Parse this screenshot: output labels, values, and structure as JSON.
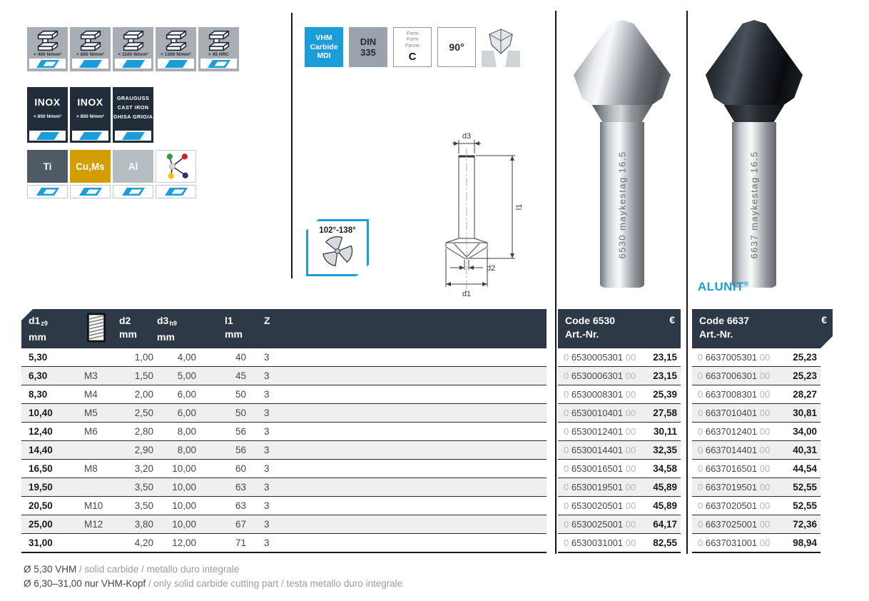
{
  "colors": {
    "accent_blue": "#1b9dd9",
    "header_navy": "#2e3947",
    "badge_gray": "#a9aeb4",
    "inox_navy": "#212c3a",
    "ti_slate": "#4e5a66",
    "cu_gold": "#d59e00",
    "al_gray": "#b5bcc2",
    "row_alt": "#efefef"
  },
  "materials": {
    "row1": [
      {
        "label": "< 400 N/mm²",
        "fill": "partial"
      },
      {
        "label": "< 850 N/mm²",
        "fill": "full"
      },
      {
        "label": "< 1100 N/mm²",
        "fill": "full"
      },
      {
        "label": "< 1300 N/mm²",
        "fill": "full"
      },
      {
        "label": "> 45 HRC",
        "fill": "partial"
      }
    ],
    "row2": [
      {
        "title": "INOX",
        "label": "< 850 N/mm²",
        "fill": "full"
      },
      {
        "title": "INOX",
        "label": "> 850 N/mm²",
        "fill": "full"
      },
      {
        "lines": [
          "GRAUGUSS",
          "CAST IRON",
          "GHISA GRIGIA"
        ],
        "fill": "full"
      }
    ],
    "row3": [
      {
        "title": "Ti",
        "bg": "#4e5a66",
        "fill": "partial"
      },
      {
        "title": "Cu,Ms",
        "bg": "#d59e00",
        "fill": "partial"
      },
      {
        "title": "Al",
        "bg": "#b5bcc2",
        "fill": "partial"
      },
      {
        "icon": "molecule-icon",
        "fill": "partial"
      }
    ]
  },
  "spec_badges": {
    "vhm": {
      "lines": [
        "VHM",
        "Carbide",
        "MDI"
      ]
    },
    "din": {
      "lines": [
        "DIN",
        "335"
      ]
    },
    "form": {
      "labels": [
        "Form",
        "Form",
        "Forme"
      ],
      "letter": "C"
    },
    "angle": "90°"
  },
  "angle_badge": {
    "label": "102°-138°"
  },
  "diagram": {
    "d3": "d3",
    "l1": "l1",
    "d2": "d2",
    "d1": "d1"
  },
  "products": [
    {
      "engraving": "6530 maykestag 16.5",
      "coating": "bright"
    },
    {
      "engraving": "6637 maykestag 16.5",
      "coating": "black",
      "brand_name": "ALUNIT",
      "brand_reg": "®"
    }
  ],
  "table": {
    "headers": {
      "d1": "d1",
      "d1_sub": "z9",
      "mm": "mm",
      "d2": "d2",
      "d3": "d3",
      "d3_sub": "h9",
      "l1": "l1",
      "z": "Z",
      "code1": "Code 6530",
      "code2": "Code 6637",
      "artnr": "Art.-Nr.",
      "euro": "€"
    },
    "code_prefix": "0",
    "code_suffix": "00",
    "rows": [
      {
        "d1": "5,30",
        "m": "",
        "d2": "1,00",
        "d3": "4,00",
        "l1": "40",
        "z": "3",
        "c1": "6530005301",
        "p1": "23,15",
        "c2": "6637005301",
        "p2": "25,23"
      },
      {
        "d1": "6,30",
        "m": "M3",
        "d2": "1,50",
        "d3": "5,00",
        "l1": "45",
        "z": "3",
        "c1": "6530006301",
        "p1": "23,15",
        "c2": "6637006301",
        "p2": "25,23"
      },
      {
        "d1": "8,30",
        "m": "M4",
        "d2": "2,00",
        "d3": "6,00",
        "l1": "50",
        "z": "3",
        "c1": "6530008301",
        "p1": "25,39",
        "c2": "6637008301",
        "p2": "28,27"
      },
      {
        "d1": "10,40",
        "m": "M5",
        "d2": "2,50",
        "d3": "6,00",
        "l1": "50",
        "z": "3",
        "c1": "6530010401",
        "p1": "27,58",
        "c2": "6637010401",
        "p2": "30,81"
      },
      {
        "d1": "12,40",
        "m": "M6",
        "d2": "2,80",
        "d3": "8,00",
        "l1": "56",
        "z": "3",
        "c1": "6530012401",
        "p1": "30,11",
        "c2": "6637012401",
        "p2": "34,00"
      },
      {
        "d1": "14,40",
        "m": "",
        "d2": "2,90",
        "d3": "8,00",
        "l1": "56",
        "z": "3",
        "c1": "6530014401",
        "p1": "32,35",
        "c2": "6637014401",
        "p2": "40,31"
      },
      {
        "d1": "16,50",
        "m": "M8",
        "d2": "3,20",
        "d3": "10,00",
        "l1": "60",
        "z": "3",
        "c1": "6530016501",
        "p1": "34,58",
        "c2": "6637016501",
        "p2": "44,54"
      },
      {
        "d1": "19,50",
        "m": "",
        "d2": "3,50",
        "d3": "10,00",
        "l1": "63",
        "z": "3",
        "c1": "6530019501",
        "p1": "45,89",
        "c2": "6637019501",
        "p2": "52,55"
      },
      {
        "d1": "20,50",
        "m": "M10",
        "d2": "3,50",
        "d3": "10,00",
        "l1": "63",
        "z": "3",
        "c1": "6530020501",
        "p1": "45,89",
        "c2": "6637020501",
        "p2": "52,55"
      },
      {
        "d1": "25,00",
        "m": "M12",
        "d2": "3,80",
        "d3": "10,00",
        "l1": "67",
        "z": "3",
        "c1": "6530025001",
        "p1": "64,17",
        "c2": "6637025001",
        "p2": "72,36"
      },
      {
        "d1": "31,00",
        "m": "",
        "d2": "4,20",
        "d3": "12,00",
        "l1": "71",
        "z": "3",
        "c1": "6530031001",
        "p1": "82,55",
        "c2": "6637031001",
        "p2": "98,94"
      }
    ]
  },
  "footnotes": [
    {
      "strong": "Ø 5,30 VHM",
      "rest": " / solid carbide / metallo duro integrale"
    },
    {
      "strong": "Ø 6,30–31,00 nur VHM-Kopf",
      "rest": " / only solid carbide cutting part / testa metallo duro integrale"
    }
  ]
}
